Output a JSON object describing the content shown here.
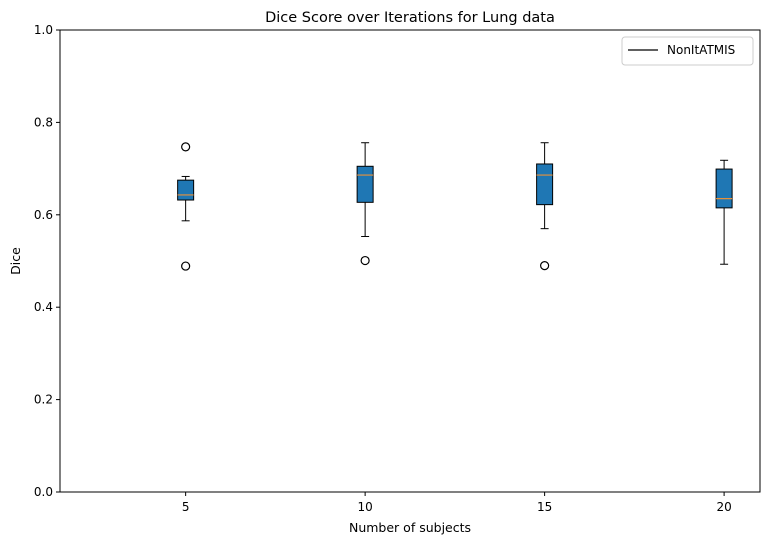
{
  "chart_data": {
    "type": "box",
    "title": "Dice Score over Iterations for Lung data",
    "xlabel": "Number of subjects",
    "ylabel": "Dice",
    "xlim": [
      1.5,
      21
    ],
    "ylim": [
      0.0,
      1.0
    ],
    "yticks": [
      0.0,
      0.2,
      0.4,
      0.6,
      0.8,
      1.0
    ],
    "ytick_labels": [
      "0.0",
      "0.2",
      "0.4",
      "0.6",
      "0.8",
      "1.0"
    ],
    "xticks": [
      5,
      10,
      15,
      20
    ],
    "xtick_labels": [
      "5",
      "10",
      "15",
      "20"
    ],
    "grid": false,
    "legend": {
      "position": "top-right",
      "entries": [
        "NonItATMIS"
      ]
    },
    "colors": {
      "box_fill": "#1f77b4",
      "median": "#e8913a",
      "edge": "#000000"
    },
    "boxes": [
      {
        "x": 5,
        "whisker_low": 0.587,
        "q1": 0.632,
        "median": 0.643,
        "q3": 0.675,
        "whisker_high": 0.683,
        "outliers": [
          0.747,
          0.489
        ]
      },
      {
        "x": 10,
        "whisker_low": 0.553,
        "q1": 0.627,
        "median": 0.686,
        "q3": 0.705,
        "whisker_high": 0.756,
        "outliers": [
          0.501
        ]
      },
      {
        "x": 15,
        "whisker_low": 0.57,
        "q1": 0.622,
        "median": 0.686,
        "q3": 0.71,
        "whisker_high": 0.756,
        "outliers": [
          0.49
        ]
      },
      {
        "x": 20,
        "whisker_low": 0.493,
        "q1": 0.615,
        "median": 0.635,
        "q3": 0.699,
        "whisker_high": 0.718,
        "outliers": []
      }
    ]
  }
}
